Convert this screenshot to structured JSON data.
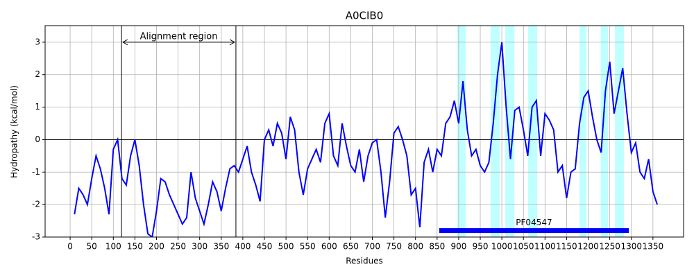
{
  "chart_data": {
    "type": "line",
    "title": "A0CIB0",
    "xlabel": "Residues",
    "ylabel": "Hydropathy (kcal/mol)",
    "x": [
      10,
      20,
      30,
      40,
      50,
      60,
      70,
      80,
      90,
      100,
      110,
      120,
      130,
      140,
      150,
      160,
      170,
      180,
      190,
      200,
      210,
      220,
      230,
      240,
      250,
      260,
      270,
      280,
      290,
      300,
      310,
      320,
      330,
      340,
      350,
      360,
      370,
      380,
      390,
      400,
      410,
      420,
      430,
      440,
      450,
      460,
      470,
      480,
      490,
      500,
      510,
      520,
      530,
      540,
      550,
      560,
      570,
      580,
      590,
      600,
      610,
      620,
      630,
      640,
      650,
      660,
      670,
      680,
      690,
      700,
      710,
      720,
      730,
      740,
      750,
      760,
      770,
      780,
      790,
      800,
      810,
      820,
      830,
      840,
      850,
      860,
      870,
      880,
      890,
      900,
      910,
      920,
      930,
      940,
      950,
      960,
      970,
      980,
      990,
      1000,
      1010,
      1020,
      1030,
      1040,
      1050,
      1060,
      1070,
      1080,
      1090,
      1100,
      1110,
      1120,
      1130,
      1140,
      1150,
      1160,
      1170,
      1180,
      1190,
      1200,
      1210,
      1220,
      1230,
      1240,
      1250,
      1260,
      1270,
      1280,
      1290,
      1300,
      1310,
      1320,
      1330,
      1340,
      1350,
      1360
    ],
    "series": [
      {
        "color": "#0000ff",
        "values": [
          -2.3,
          -1.5,
          -1.7,
          -2.0,
          -1.2,
          -0.5,
          -0.9,
          -1.5,
          -2.3,
          -0.3,
          0.0,
          -1.2,
          -1.4,
          -0.5,
          0.0,
          -0.8,
          -2.0,
          -2.9,
          -3.0,
          -2.2,
          -1.2,
          -1.3,
          -1.7,
          -2.0,
          -2.3,
          -2.6,
          -2.4,
          -1.0,
          -1.8,
          -2.2,
          -2.6,
          -2.0,
          -1.3,
          -1.6,
          -2.2,
          -1.5,
          -0.9,
          -0.8,
          -1.0,
          -0.6,
          -0.2,
          -1.0,
          -1.4,
          -1.9,
          0.0,
          0.3,
          -0.2,
          0.5,
          0.2,
          -0.6,
          0.7,
          0.3,
          -1.0,
          -1.7,
          -0.9,
          -0.6,
          -0.3,
          -0.7,
          0.5,
          0.8,
          -0.5,
          -0.8,
          0.5,
          -0.2,
          -0.8,
          -1.0,
          -0.3,
          -1.3,
          -0.5,
          -0.1,
          0.0,
          -1.0,
          -2.4,
          -1.3,
          0.2,
          0.4,
          0.0,
          -0.5,
          -1.7,
          -1.5,
          -2.7,
          -0.7,
          -0.3,
          -1.0,
          -0.3,
          -0.5,
          0.5,
          0.7,
          1.2,
          0.5,
          1.8,
          0.3,
          -0.5,
          -0.3,
          -0.8,
          -1.0,
          -0.7,
          0.5,
          2.0,
          3.0,
          1.0,
          -0.6,
          0.9,
          1.0,
          0.3,
          -0.5,
          1.0,
          1.2,
          -0.5,
          0.8,
          0.6,
          0.3,
          -1.0,
          -0.8,
          -1.8,
          -1.0,
          -0.9,
          0.5,
          1.3,
          1.5,
          0.7,
          0.0,
          -0.4,
          1.5,
          2.4,
          0.8,
          1.5,
          2.2,
          0.8,
          -0.4,
          -0.1,
          -1.0,
          -1.2,
          -0.6,
          -1.6,
          -2.0
        ]
      }
    ],
    "xlim": [
      -58,
      1421
    ],
    "ylim": [
      -3,
      3.51
    ],
    "xticks": [
      0,
      50,
      100,
      150,
      200,
      250,
      300,
      350,
      400,
      450,
      500,
      550,
      600,
      650,
      700,
      750,
      800,
      850,
      900,
      950,
      1000,
      1050,
      1100,
      1150,
      1200,
      1250,
      1300,
      1350
    ],
    "yticks": [
      -3,
      -2,
      -1,
      0,
      1,
      2,
      3
    ],
    "grid": true,
    "zero_line": true,
    "highlight_color": "#00ffff",
    "highlight_regions": [
      [
        897,
        916
      ],
      [
        974,
        995
      ],
      [
        1008,
        1029
      ],
      [
        1061,
        1082
      ],
      [
        1180,
        1196
      ],
      [
        1229,
        1246
      ],
      [
        1262,
        1283
      ]
    ],
    "alignment_region": {
      "label": "Alignment region",
      "start": 119,
      "end": 384,
      "y": 3
    },
    "domain": {
      "label": "PF04547",
      "start": 855,
      "end": 1294,
      "y": -2.8,
      "color": "#0000ff"
    }
  }
}
